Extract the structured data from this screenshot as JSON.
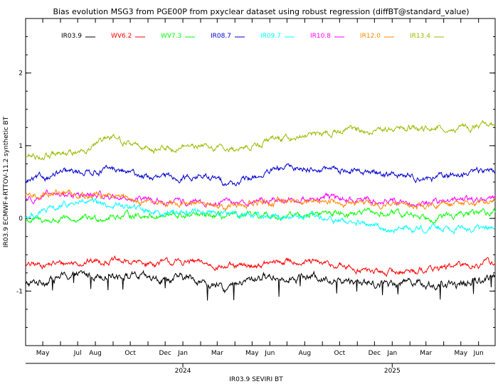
{
  "chart_data": {
    "type": "line",
    "title": "Bias evolution MSG3 from PGE00P from pxyclear dataset using robust regression (diffBT@standard_value)",
    "xlabel": "IR03.9 SEVIRI BT",
    "ylabel": "IR03.9 ECMWF+RTTOV-11.2 synthetic BT",
    "xlim": [
      "2023-04-01",
      "2025-06-30"
    ],
    "ylim": [
      -1.75,
      2.75
    ],
    "yticks": [
      -1,
      0,
      1,
      2
    ],
    "ytick_labels": [
      "-1",
      "0",
      "1",
      "2"
    ],
    "xtick_labels": [
      {
        "date": "2023-05-01",
        "label": "May"
      },
      {
        "date": "2023-07-01",
        "label": "Jul"
      },
      {
        "date": "2023-08-01",
        "label": "Aug"
      },
      {
        "date": "2023-10-01",
        "label": "Oct"
      },
      {
        "date": "2023-12-01",
        "label": "Dec"
      },
      {
        "date": "2024-01-01",
        "label": "Jan"
      },
      {
        "date": "2024-03-01",
        "label": "Mar"
      },
      {
        "date": "2024-05-01",
        "label": "May"
      },
      {
        "date": "2024-06-01",
        "label": "Jun"
      },
      {
        "date": "2024-08-01",
        "label": "Aug"
      },
      {
        "date": "2024-10-01",
        "label": "Oct"
      },
      {
        "date": "2024-12-01",
        "label": "Dec"
      },
      {
        "date": "2025-01-01",
        "label": "Jan"
      },
      {
        "date": "2025-03-01",
        "label": "Mar"
      },
      {
        "date": "2025-05-01",
        "label": "May"
      },
      {
        "date": "2025-06-01",
        "label": "Jun"
      }
    ],
    "year_labels": [
      {
        "date": "2024-01-01",
        "label": "2024"
      },
      {
        "date": "2025-01-01",
        "label": "2025"
      }
    ],
    "legend_position": "top",
    "grid": false,
    "series": [
      {
        "name": "IR03.9",
        "color": "#000000",
        "trend": [
          [
            "2023-04-01",
            -0.92
          ],
          [
            "2023-06-01",
            -0.8
          ],
          [
            "2023-09-01",
            -0.76
          ],
          [
            "2023-11-15",
            -0.85
          ],
          [
            "2024-01-15",
            -0.82
          ],
          [
            "2024-03-15",
            -0.98
          ],
          [
            "2024-05-15",
            -0.8
          ],
          [
            "2024-08-01",
            -0.8
          ],
          [
            "2024-10-01",
            -0.84
          ],
          [
            "2024-12-15",
            -0.9
          ],
          [
            "2025-02-01",
            -0.85
          ],
          [
            "2025-04-01",
            -0.95
          ],
          [
            "2025-06-30",
            -0.8
          ]
        ]
      },
      {
        "name": "WV6.2",
        "color": "#ff0000",
        "trend": [
          [
            "2023-04-01",
            -0.65
          ],
          [
            "2023-06-01",
            -0.62
          ],
          [
            "2023-08-15",
            -0.58
          ],
          [
            "2023-11-01",
            -0.62
          ],
          [
            "2024-01-15",
            -0.6
          ],
          [
            "2024-04-01",
            -0.68
          ],
          [
            "2024-07-15",
            -0.58
          ],
          [
            "2024-10-01",
            -0.66
          ],
          [
            "2024-12-15",
            -0.75
          ],
          [
            "2025-03-01",
            -0.7
          ],
          [
            "2025-06-30",
            -0.6
          ]
        ]
      },
      {
        "name": "WV7.3",
        "color": "#00ff00",
        "trend": [
          [
            "2023-04-01",
            -0.03
          ],
          [
            "2023-07-01",
            -0.02
          ],
          [
            "2023-10-01",
            0.05
          ],
          [
            "2024-01-01",
            0.03
          ],
          [
            "2024-04-01",
            0.02
          ],
          [
            "2024-07-01",
            0.04
          ],
          [
            "2024-10-01",
            0.08
          ],
          [
            "2025-01-01",
            0.06
          ],
          [
            "2025-04-01",
            0.02
          ],
          [
            "2025-06-30",
            0.1
          ]
        ]
      },
      {
        "name": "IR08.7",
        "color": "#0000cc",
        "trend": [
          [
            "2023-04-01",
            0.5
          ],
          [
            "2023-06-01",
            0.62
          ],
          [
            "2023-09-01",
            0.67
          ],
          [
            "2023-11-15",
            0.55
          ],
          [
            "2024-02-01",
            0.58
          ],
          [
            "2024-04-01",
            0.48
          ],
          [
            "2024-07-01",
            0.7
          ],
          [
            "2024-10-01",
            0.67
          ],
          [
            "2024-12-15",
            0.62
          ],
          [
            "2025-03-15",
            0.55
          ],
          [
            "2025-06-30",
            0.68
          ]
        ]
      },
      {
        "name": "IR09.7",
        "color": "#00ffff",
        "trend": [
          [
            "2023-04-01",
            0.02
          ],
          [
            "2023-07-01",
            0.22
          ],
          [
            "2023-09-15",
            0.17
          ],
          [
            "2023-12-01",
            0.08
          ],
          [
            "2024-02-01",
            0.1
          ],
          [
            "2024-05-01",
            0.05
          ],
          [
            "2024-08-01",
            0.02
          ],
          [
            "2024-10-15",
            -0.05
          ],
          [
            "2025-01-01",
            -0.15
          ],
          [
            "2025-04-01",
            -0.12
          ],
          [
            "2025-06-30",
            -0.15
          ]
        ]
      },
      {
        "name": "IR10.8",
        "color": "#ff00ff",
        "trend": [
          [
            "2023-04-01",
            0.27
          ],
          [
            "2023-06-01",
            0.33
          ],
          [
            "2023-09-01",
            0.3
          ],
          [
            "2023-12-01",
            0.22
          ],
          [
            "2024-03-01",
            0.2
          ],
          [
            "2024-06-01",
            0.25
          ],
          [
            "2024-09-01",
            0.28
          ],
          [
            "2024-12-01",
            0.25
          ],
          [
            "2025-03-01",
            0.22
          ],
          [
            "2025-06-30",
            0.28
          ]
        ]
      },
      {
        "name": "IR12.0",
        "color": "#ff8800",
        "trend": [
          [
            "2023-04-01",
            0.3
          ],
          [
            "2023-06-01",
            0.36
          ],
          [
            "2023-09-01",
            0.3
          ],
          [
            "2023-12-01",
            0.2
          ],
          [
            "2024-03-01",
            0.18
          ],
          [
            "2024-06-01",
            0.22
          ],
          [
            "2024-09-01",
            0.25
          ],
          [
            "2024-12-01",
            0.2
          ],
          [
            "2025-03-01",
            0.17
          ],
          [
            "2025-06-30",
            0.22
          ]
        ]
      },
      {
        "name": "IR13.4",
        "color": "#99bb00",
        "trend": [
          [
            "2023-04-01",
            0.85
          ],
          [
            "2023-06-15",
            0.88
          ],
          [
            "2023-09-01",
            1.1
          ],
          [
            "2023-11-15",
            0.95
          ],
          [
            "2024-01-15",
            1.0
          ],
          [
            "2024-04-01",
            0.95
          ],
          [
            "2024-07-01",
            1.12
          ],
          [
            "2024-10-01",
            1.2
          ],
          [
            "2025-01-01",
            1.22
          ],
          [
            "2025-04-01",
            1.25
          ],
          [
            "2025-06-30",
            1.28
          ]
        ]
      }
    ]
  }
}
